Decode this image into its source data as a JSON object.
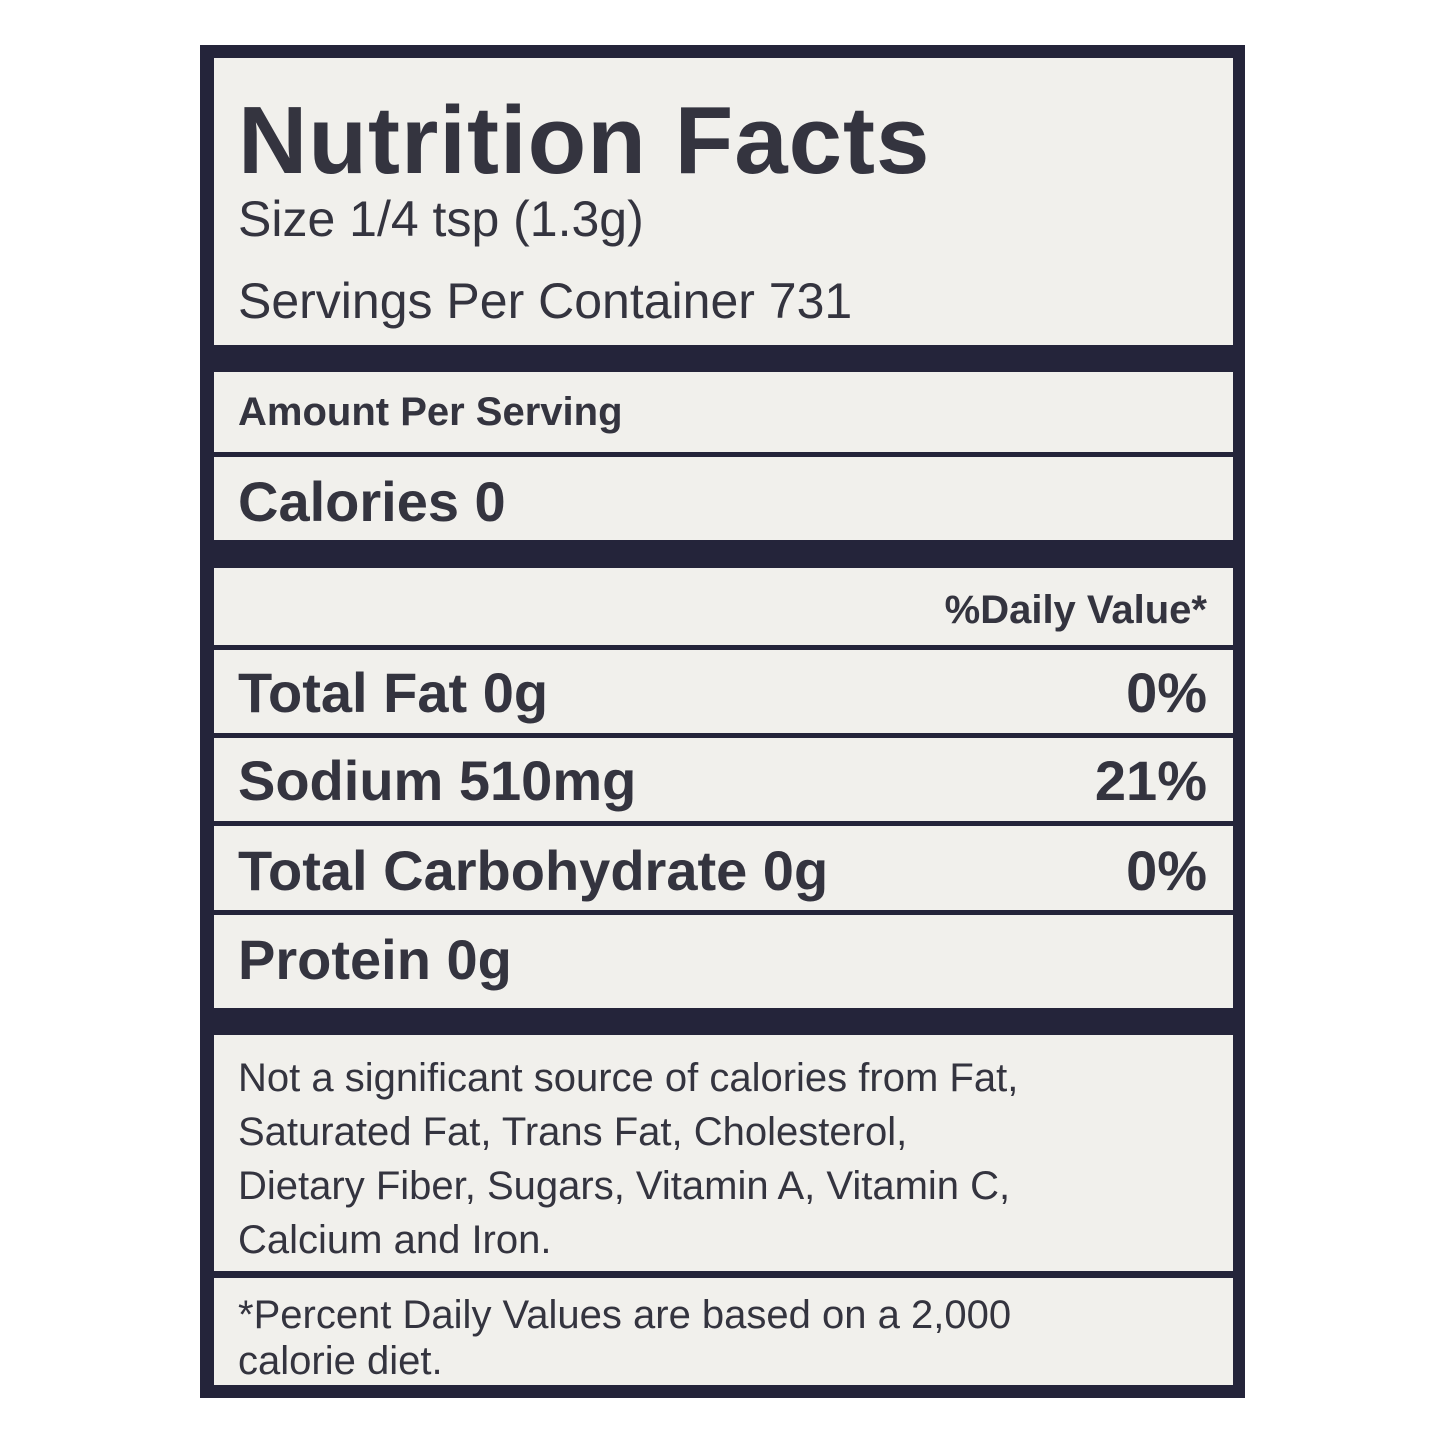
{
  "title": "Nutrition Facts",
  "serving_size": "Size 1/4 tsp (1.3g)",
  "servings_per_container": "Servings Per Container 731",
  "amount_per_serving": "Amount Per Serving",
  "calories": "Calories 0",
  "daily_value_header": "%Daily Value*",
  "nutrients": [
    {
      "label": "Total Fat 0g",
      "dv": "0%"
    },
    {
      "label": "Sodium 510mg",
      "dv": "21%"
    },
    {
      "label": "Total Carbohydrate 0g",
      "dv": "0%"
    },
    {
      "label": "Protein 0g",
      "dv": ""
    }
  ],
  "not_significant": [
    "Not a significant source of calories from Fat,",
    "Saturated Fat, Trans Fat, Cholesterol,",
    "Dietary Fiber, Sugars, Vitamin A, Vitamin C,",
    "Calcium and Iron."
  ],
  "footnote": [
    "*Percent Daily Values are based on a 2,000",
    "calorie diet."
  ],
  "colors": {
    "border": "#24243a",
    "panel": "#f1f0ec",
    "text": "#34343f"
  }
}
